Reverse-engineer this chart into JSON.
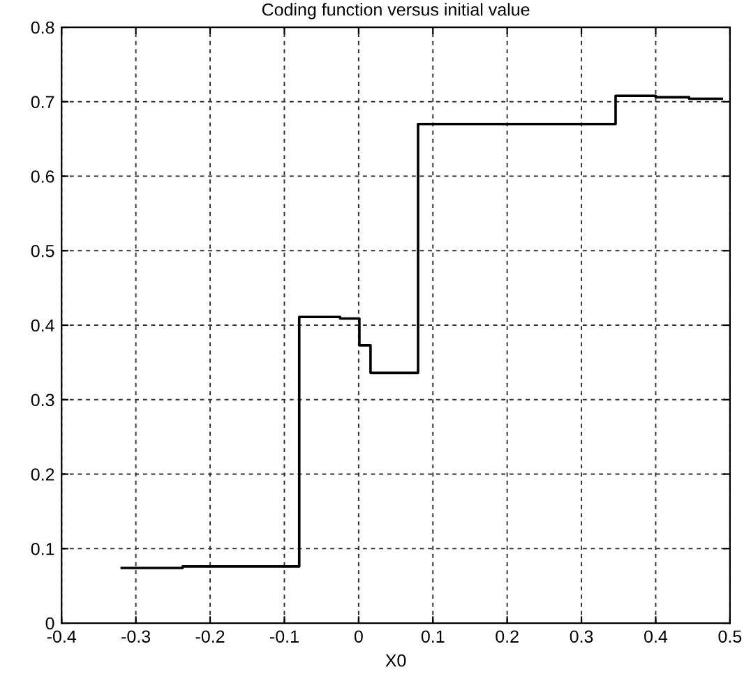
{
  "chart_data": {
    "type": "step",
    "title": "Coding function versus initial value",
    "xlabel": "X0",
    "x": [
      -0.319,
      -0.237,
      -0.08,
      -0.025,
      0.001,
      0.016,
      0.08,
      0.346,
      0.4,
      0.445,
      0.489
    ],
    "series": [
      {
        "color": "#000000",
        "values": [
          0.074,
          0.076,
          0.411,
          0.409,
          0.373,
          0.336,
          0.67,
          0.708,
          0.706,
          0.704,
          0.704
        ]
      }
    ],
    "xlim": [
      -0.4,
      0.5
    ],
    "xticks": [
      -0.4,
      -0.3,
      -0.2,
      -0.1,
      0,
      0.1,
      0.2,
      0.3,
      0.4,
      0.5
    ],
    "ylim": [
      0,
      0.8
    ],
    "yticks": [
      0,
      0.1,
      0.2,
      0.3,
      0.4,
      0.5,
      0.6,
      0.7,
      0.8
    ],
    "grid": true,
    "line_style": "solid",
    "marker": "none"
  }
}
